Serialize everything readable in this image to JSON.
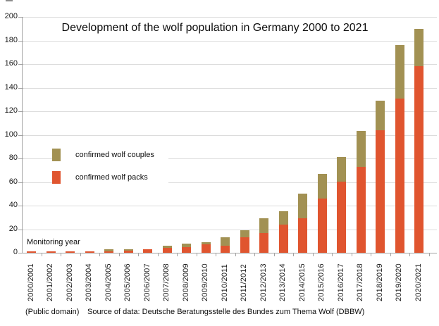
{
  "header": {
    "title": "Development of the wolf population in Germany 2000 to 2021"
  },
  "legend": {
    "items": [
      {
        "id": "couples",
        "label": "confirmed wolf couples",
        "color": "#a29153"
      },
      {
        "id": "packs",
        "label": "confirmed wolf packs",
        "color": "#e0552f"
      }
    ]
  },
  "annotations": {
    "x_axis_note": "Monitoring year"
  },
  "footer": {
    "license": "(Public domain)",
    "source": "Source of data: Deutsche Beratungsstelle des Bundes zum Thema Wolf (DBBW)"
  },
  "colors": {
    "background": "#ffffff",
    "gridline": "#dcdcdc",
    "axis": "#a3a3a3",
    "packs": "#e0552f",
    "couples": "#a29153",
    "text": "#0d0d0d"
  },
  "chart_data": {
    "type": "bar",
    "stacked": true,
    "title": "Development of the wolf population in Germany 2000 to 2021",
    "xlabel": "Monitoring year",
    "ylabel": "",
    "ylim": [
      0,
      200
    ],
    "y_tick_step": 20,
    "grid": true,
    "legend_position": "middle-left",
    "categories": [
      "2000/2001",
      "2001/2002",
      "2002/2003",
      "2003/2004",
      "2004/2005",
      "2005/2006",
      "2006/2007",
      "2007/2008",
      "2008/2009",
      "2009/2010",
      "2010/2011",
      "2011/2012",
      "2012/2013",
      "2013/2014",
      "2014/2015",
      "2015/2016",
      "2016/2017",
      "2017/2018",
      "2018/2019",
      "2019/2020",
      "2020/2021"
    ],
    "series": [
      {
        "name": "confirmed wolf packs",
        "color": "#e0552f",
        "values": [
          1,
          1,
          1,
          1,
          1,
          2,
          3,
          4,
          5,
          7,
          6,
          13,
          17,
          24,
          29,
          46,
          60,
          73,
          104,
          131,
          158
        ]
      },
      {
        "name": "confirmed wolf couples",
        "color": "#a29153",
        "values": [
          0,
          0,
          0,
          0,
          2,
          1,
          0,
          2,
          3,
          2,
          7,
          6,
          12,
          11,
          21,
          21,
          21,
          30,
          25,
          45,
          32
        ]
      }
    ],
    "totals": [
      1,
      1,
      1,
      1,
      3,
      3,
      3,
      6,
      8,
      9,
      13,
      19,
      29,
      35,
      50,
      67,
      81,
      103,
      129,
      176,
      190
    ]
  }
}
